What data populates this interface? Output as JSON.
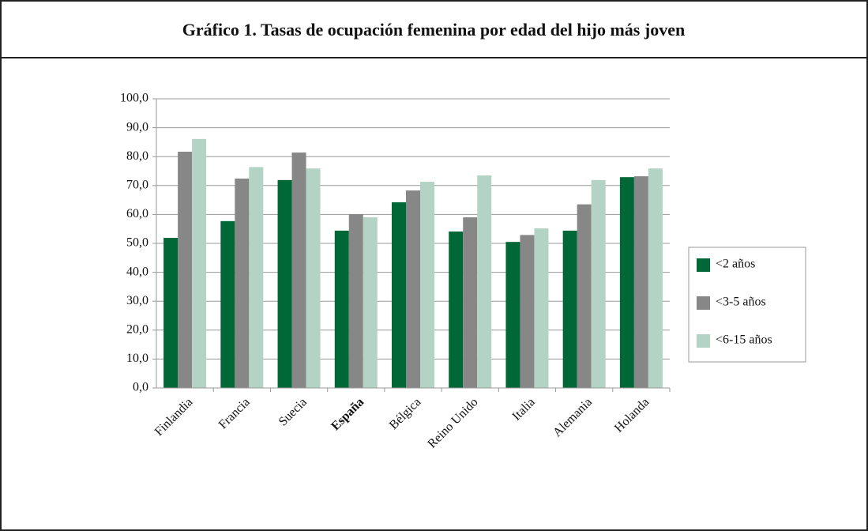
{
  "chart_data": {
    "type": "bar",
    "title": "Gráfico 1. Tasas de ocupación femenina por edad del hijo más joven",
    "categories": [
      "Finlandia",
      "Francia",
      "Suecia",
      "España",
      "Bélgica",
      "Reino Unido",
      "Italia",
      "Alemania",
      "Holanda"
    ],
    "series": [
      {
        "name": "<2 años",
        "color": "#006837",
        "values": [
          51.9,
          57.7,
          71.9,
          54.4,
          64.2,
          54.1,
          50.5,
          54.4,
          72.9
        ]
      },
      {
        "name": "<3-5 años",
        "color": "#878787",
        "values": [
          81.7,
          72.4,
          81.4,
          60.1,
          68.3,
          59.0,
          52.9,
          63.5,
          73.2
        ]
      },
      {
        "name": "<6-15 años",
        "color": "#b3d4c5",
        "values": [
          86.1,
          76.4,
          75.9,
          59.0,
          71.3,
          73.5,
          55.2,
          71.9,
          75.9
        ]
      }
    ],
    "ylim": [
      0,
      100
    ],
    "yticks": [
      {
        "value": 0,
        "label": "0,0"
      },
      {
        "value": 10,
        "label": "10,0"
      },
      {
        "value": 20,
        "label": "20,0"
      },
      {
        "value": 30,
        "label": "30,0"
      },
      {
        "value": 40,
        "label": "40,0"
      },
      {
        "value": 50,
        "label": "50,0"
      },
      {
        "value": 60,
        "label": "60,0"
      },
      {
        "value": 70,
        "label": "70,0"
      },
      {
        "value": 80,
        "label": "80,0"
      },
      {
        "value": 90,
        "label": "90,0"
      },
      {
        "value": 100,
        "label": "100,0"
      }
    ],
    "grid": true,
    "legend": "right"
  }
}
